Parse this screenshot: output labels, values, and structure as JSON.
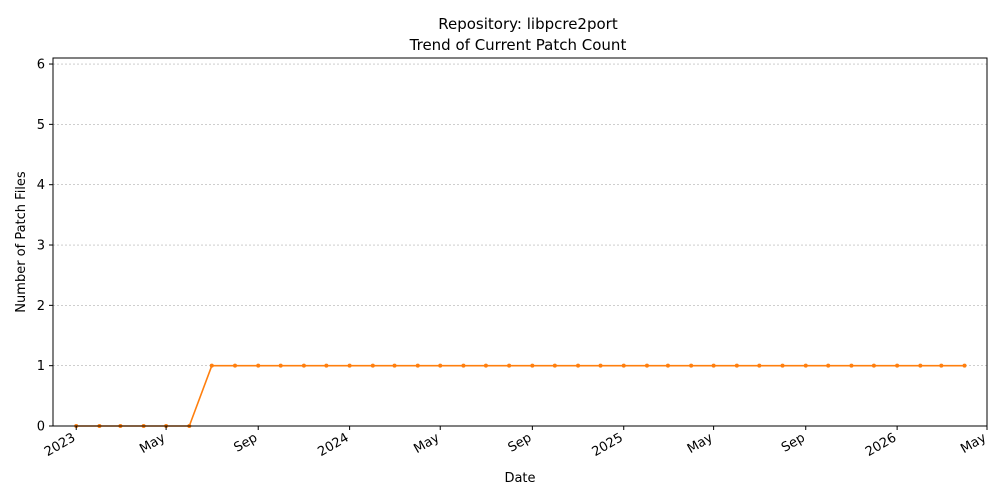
{
  "chart_data": {
    "type": "line",
    "title": "Repository: libpcre2port",
    "subtitle": "Trend of Current Patch Count",
    "xlabel": "Date",
    "ylabel": "Number of Patch Files",
    "ylim": [
      0,
      6.1
    ],
    "yticks": [
      0,
      1,
      2,
      3,
      4,
      5,
      6
    ],
    "xlim": [
      "2022-12-01",
      "2026-05-01"
    ],
    "xticks": [
      {
        "date": "2023-01-01",
        "label": "2023"
      },
      {
        "date": "2023-05-01",
        "label": "May"
      },
      {
        "date": "2023-09-01",
        "label": "Sep"
      },
      {
        "date": "2024-01-01",
        "label": "2024"
      },
      {
        "date": "2024-05-01",
        "label": "May"
      },
      {
        "date": "2024-09-01",
        "label": "Sep"
      },
      {
        "date": "2025-01-01",
        "label": "2025"
      },
      {
        "date": "2025-05-01",
        "label": "May"
      },
      {
        "date": "2025-09-01",
        "label": "Sep"
      },
      {
        "date": "2026-01-01",
        "label": "2026"
      },
      {
        "date": "2026-05-01",
        "label": "May"
      }
    ],
    "grid": "y",
    "line_color": "#ff7f0e",
    "series": [
      {
        "x": [
          "2023-01-01",
          "2023-02-01",
          "2023-03-01",
          "2023-04-01",
          "2023-05-01",
          "2023-06-01",
          "2023-07-01",
          "2023-08-01",
          "2023-09-01",
          "2023-10-01",
          "2023-11-01",
          "2023-12-01",
          "2024-01-01",
          "2024-02-01",
          "2024-03-01",
          "2024-04-01",
          "2024-05-01",
          "2024-06-01",
          "2024-07-01",
          "2024-08-01",
          "2024-09-01",
          "2024-10-01",
          "2024-11-01",
          "2024-12-01",
          "2025-01-01",
          "2025-02-01",
          "2025-03-01",
          "2025-04-01",
          "2025-05-01",
          "2025-06-01",
          "2025-07-01",
          "2025-08-01",
          "2025-09-01",
          "2025-10-01",
          "2025-11-01",
          "2025-12-01",
          "2026-01-01",
          "2026-02-01",
          "2026-03-01",
          "2026-04-01"
        ],
        "y": [
          0,
          0,
          0,
          0,
          0,
          0,
          1,
          1,
          1,
          1,
          1,
          1,
          1,
          1,
          1,
          1,
          1,
          1,
          1,
          1,
          1,
          1,
          1,
          1,
          1,
          1,
          1,
          1,
          1,
          1,
          1,
          1,
          1,
          1,
          1,
          1,
          1,
          1,
          1,
          1
        ]
      }
    ]
  }
}
